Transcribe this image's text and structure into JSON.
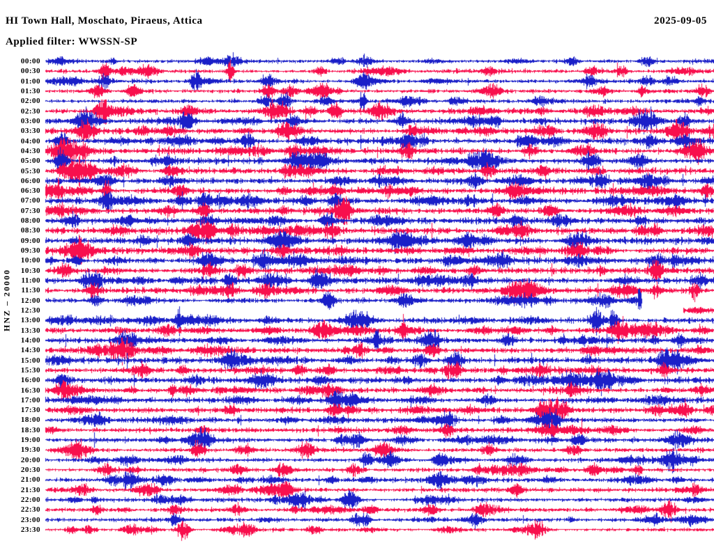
{
  "page": {
    "background": "#ffffff",
    "text_color": "#000000"
  },
  "header": {
    "station_title": "HI Town Hall, Moschato, Piraeus, Attica",
    "date": "2025-09-05",
    "filter_label": "Applied filter: WWSSN-SP"
  },
  "y_axis": {
    "scale_label": "HNZ – 20000"
  },
  "chart_data": {
    "type": "line",
    "subtype": "helicorder-day-plot",
    "title": "HI Town Hall, Moschato, Piraeus, Attica",
    "date": "2025-09-05",
    "filter": "WWSSN-SP",
    "channel_scale": "HNZ – 20000",
    "rows_per_day": 48,
    "minutes_per_row": 30,
    "grid": false,
    "legend": "none",
    "colors": {
      "blue": "#1a1fc8",
      "red": "#f80f4d"
    },
    "rows": [
      {
        "label": "00:00",
        "color": "blue",
        "activity": 0.5,
        "bursts": [
          {
            "t": 0.28,
            "a": 9
          },
          {
            "t": 0.48,
            "a": 8
          },
          {
            "t": 0.9,
            "a": 7
          }
        ]
      },
      {
        "label": "00:30",
        "color": "red",
        "activity": 0.5,
        "bursts": [
          {
            "t": 0.089,
            "a": 6
          },
          {
            "t": 0.277,
            "a": 16,
            "w": 0.004
          },
          {
            "t": 0.663,
            "a": 7
          }
        ]
      },
      {
        "label": "01:00",
        "color": "blue",
        "activity": 0.5,
        "bursts": [
          {
            "t": 0.089,
            "a": 8
          },
          {
            "t": 0.334,
            "a": 10
          },
          {
            "t": 0.475,
            "a": 9
          }
        ]
      },
      {
        "label": "01:30",
        "color": "red",
        "activity": 0.55,
        "bursts": [
          {
            "t": 0.078,
            "a": 10
          },
          {
            "t": 0.131,
            "a": 8
          },
          {
            "t": 0.334,
            "a": 9
          },
          {
            "t": 0.366,
            "a": 10
          },
          {
            "t": 0.984,
            "a": 8
          }
        ]
      },
      {
        "label": "02:00",
        "color": "blue",
        "activity": 0.5,
        "bursts": [
          {
            "t": 0.329,
            "a": 9
          },
          {
            "t": 0.358,
            "a": 11
          },
          {
            "t": 0.475,
            "a": 16,
            "w": 0.003
          }
        ]
      },
      {
        "label": "02:30",
        "color": "red",
        "activity": 0.7,
        "bursts": [
          {
            "t": 0.087,
            "a": 12
          },
          {
            "t": 0.214,
            "a": 9
          },
          {
            "t": 0.345,
            "a": 13,
            "w": 0.012
          },
          {
            "t": 0.434,
            "a": 10
          },
          {
            "t": 0.826,
            "a": 8
          }
        ]
      },
      {
        "label": "03:00",
        "color": "blue",
        "activity": 0.75,
        "bursts": [
          {
            "t": 0.063,
            "a": 12,
            "w": 0.012
          },
          {
            "t": 0.212,
            "a": 12
          },
          {
            "t": 0.371,
            "a": 9
          },
          {
            "t": 0.533,
            "a": 8
          },
          {
            "t": 0.956,
            "a": 9
          }
        ]
      },
      {
        "label": "03:30",
        "color": "red",
        "activity": 0.8,
        "bursts": [
          {
            "t": 0.066,
            "a": 12
          },
          {
            "t": 0.363,
            "a": 13,
            "w": 0.01
          },
          {
            "t": 0.549,
            "a": 8
          },
          {
            "t": 0.828,
            "a": 9
          },
          {
            "t": 0.951,
            "a": 10
          }
        ]
      },
      {
        "label": "04:00",
        "color": "blue",
        "activity": 0.85,
        "bursts": [
          {
            "t": 0.024,
            "a": 10
          },
          {
            "t": 0.303,
            "a": 9
          },
          {
            "t": 0.543,
            "a": 12
          },
          {
            "t": 0.726,
            "a": 8
          },
          {
            "t": 0.904,
            "a": 9
          },
          {
            "t": 0.954,
            "a": 9
          }
        ]
      },
      {
        "label": "04:30",
        "color": "red",
        "activity": 0.9,
        "bursts": [
          {
            "t": 0.031,
            "a": 14,
            "w": 0.012
          },
          {
            "t": 0.371,
            "a": 9
          },
          {
            "t": 0.543,
            "a": 10
          },
          {
            "t": 0.726,
            "a": 8
          }
        ]
      },
      {
        "label": "05:00",
        "color": "blue",
        "activity": 0.9,
        "bursts": [
          {
            "t": 0.024,
            "a": 15,
            "w": 0.006
          },
          {
            "t": 0.183,
            "a": 8
          },
          {
            "t": 0.413,
            "a": 8
          },
          {
            "t": 0.663,
            "a": 8
          },
          {
            "t": 0.888,
            "a": 10
          }
        ]
      },
      {
        "label": "05:30",
        "color": "red",
        "activity": 0.9,
        "bursts": [
          {
            "t": 0.057,
            "a": 13,
            "w": 0.014
          },
          {
            "t": 0.188,
            "a": 8
          },
          {
            "t": 0.663,
            "a": 9
          },
          {
            "t": 0.745,
            "a": 8
          }
        ]
      },
      {
        "label": "06:00",
        "color": "blue",
        "activity": 0.85,
        "bursts": [
          {
            "t": 0.091,
            "a": 12
          },
          {
            "t": 0.643,
            "a": 9
          },
          {
            "t": 0.831,
            "a": 9
          },
          {
            "t": 0.904,
            "a": 8
          }
        ]
      },
      {
        "label": "06:30",
        "color": "red",
        "activity": 0.9,
        "bursts": [
          {
            "t": 0.018,
            "a": 10
          },
          {
            "t": 0.091,
            "a": 18,
            "w": 0.004
          },
          {
            "t": 0.434,
            "a": 8
          },
          {
            "t": 0.988,
            "a": 9
          }
        ]
      },
      {
        "label": "07:00",
        "color": "blue",
        "activity": 0.9,
        "bursts": [
          {
            "t": 0.091,
            "a": 12
          },
          {
            "t": 0.206,
            "a": 9
          },
          {
            "t": 0.237,
            "a": 9
          },
          {
            "t": 0.434,
            "a": 8
          }
        ]
      },
      {
        "label": "07:30",
        "color": "red",
        "activity": 0.9,
        "bursts": [
          {
            "t": 0.024,
            "a": 8
          },
          {
            "t": 0.237,
            "a": 9
          },
          {
            "t": 0.444,
            "a": 12
          },
          {
            "t": 0.676,
            "a": 8
          },
          {
            "t": 0.756,
            "a": 8
          }
        ]
      },
      {
        "label": "08:00",
        "color": "blue",
        "activity": 0.95,
        "bursts": [
          {
            "t": 0.125,
            "a": 9
          },
          {
            "t": 0.423,
            "a": 12
          },
          {
            "t": 0.705,
            "a": 9
          }
        ]
      },
      {
        "label": "08:30",
        "color": "red",
        "activity": 0.95,
        "bursts": [
          {
            "t": 0.244,
            "a": 12
          },
          {
            "t": 0.28,
            "a": 9
          },
          {
            "t": 0.428,
            "a": 9
          },
          {
            "t": 0.708,
            "a": 8
          },
          {
            "t": 0.893,
            "a": 8
          }
        ]
      },
      {
        "label": "09:00",
        "color": "blue",
        "activity": 0.95,
        "bursts": [
          {
            "t": 0.214,
            "a": 9
          },
          {
            "t": 0.355,
            "a": 13,
            "w": 0.01
          },
          {
            "t": 0.533,
            "a": 9
          },
          {
            "t": 0.799,
            "a": 11,
            "w": 0.012
          }
        ]
      },
      {
        "label": "09:30",
        "color": "red",
        "activity": 0.95,
        "bursts": [
          {
            "t": 0.047,
            "a": 11,
            "w": 0.014
          },
          {
            "t": 0.355,
            "a": 9
          },
          {
            "t": 0.799,
            "a": 9
          }
        ]
      },
      {
        "label": "10:00",
        "color": "blue",
        "activity": 0.95,
        "bursts": [
          {
            "t": 0.246,
            "a": 12,
            "w": 0.01
          },
          {
            "t": 0.326,
            "a": 9
          },
          {
            "t": 0.684,
            "a": 9
          },
          {
            "t": 0.914,
            "a": 8
          }
        ]
      },
      {
        "label": "10:30",
        "color": "red",
        "activity": 0.9,
        "bursts": [
          {
            "t": 0.028,
            "a": 9
          },
          {
            "t": 0.246,
            "a": 9
          },
          {
            "t": 0.643,
            "a": 8
          },
          {
            "t": 0.914,
            "a": 9
          }
        ]
      },
      {
        "label": "11:00",
        "color": "blue",
        "activity": 0.9,
        "bursts": [
          {
            "t": 0.07,
            "a": 13,
            "w": 0.012
          },
          {
            "t": 0.277,
            "a": 9
          },
          {
            "t": 0.408,
            "a": 9
          },
          {
            "t": 0.632,
            "a": 9
          }
        ]
      },
      {
        "label": "11:30",
        "color": "red",
        "activity": 0.9,
        "bursts": [
          {
            "t": 0.07,
            "a": 9
          },
          {
            "t": 0.277,
            "a": 8
          },
          {
            "t": 0.71,
            "a": 12,
            "w": 0.016
          },
          {
            "t": 0.914,
            "a": 8
          },
          {
            "t": 0.972,
            "a": 13,
            "w": 0.004
          }
        ]
      },
      {
        "label": "12:00",
        "color": "blue",
        "activity": 0.7,
        "segments": [
          [
            0,
            0.893
          ]
        ],
        "bursts": [
          {
            "t": 0.423,
            "a": 12
          },
          {
            "t": 0.538,
            "a": 9
          },
          {
            "t": 0.833,
            "a": 10,
            "w": 0.012
          },
          {
            "t": 0.889,
            "a": 16,
            "w": 0.002
          }
        ]
      },
      {
        "label": "12:30",
        "color": "red",
        "activity": 0.55,
        "segments": [
          [
            0.955,
            1
          ]
        ],
        "bursts": []
      },
      {
        "label": "13:00",
        "color": "blue",
        "activity": 0.85,
        "bursts": [
          {
            "t": 0.199,
            "a": 15,
            "w": 0.0025
          },
          {
            "t": 0.826,
            "a": 18,
            "w": 0.006
          },
          {
            "t": 0.85,
            "a": 14,
            "w": 0.004
          }
        ]
      },
      {
        "label": "13:30",
        "color": "red",
        "activity": 0.85,
        "bursts": [
          {
            "t": 0.183,
            "a": 8
          },
          {
            "t": 0.416,
            "a": 12,
            "w": 0.012
          },
          {
            "t": 0.536,
            "a": 16,
            "w": 0.002
          },
          {
            "t": 0.862,
            "a": 9
          }
        ]
      },
      {
        "label": "14:00",
        "color": "blue",
        "activity": 0.85,
        "bursts": [
          {
            "t": 0.122,
            "a": 12,
            "w": 0.01
          },
          {
            "t": 0.496,
            "a": 16,
            "w": 0.003
          },
          {
            "t": 0.58,
            "a": 9
          },
          {
            "t": 0.693,
            "a": 8
          }
        ]
      },
      {
        "label": "14:30",
        "color": "red",
        "activity": 0.85,
        "bursts": [
          {
            "t": 0.12,
            "a": 13,
            "w": 0.01
          },
          {
            "t": 0.47,
            "a": 9
          },
          {
            "t": 0.58,
            "a": 9
          }
        ]
      },
      {
        "label": "15:00",
        "color": "blue",
        "activity": 0.85,
        "bursts": [
          {
            "t": 0.279,
            "a": 12,
            "w": 0.01
          },
          {
            "t": 0.559,
            "a": 9
          },
          {
            "t": 0.613,
            "a": 10
          },
          {
            "t": 0.925,
            "a": 8
          }
        ]
      },
      {
        "label": "15:30",
        "color": "red",
        "activity": 0.85,
        "bursts": [
          {
            "t": 0.146,
            "a": 9
          },
          {
            "t": 0.423,
            "a": 8
          },
          {
            "t": 0.613,
            "a": 8
          },
          {
            "t": 0.925,
            "a": 8
          }
        ]
      },
      {
        "label": "16:00",
        "color": "blue",
        "activity": 0.9,
        "bursts": [
          {
            "t": 0.026,
            "a": 11
          },
          {
            "t": 0.789,
            "a": 9
          },
          {
            "t": 0.833,
            "a": 12,
            "w": 0.01
          }
        ]
      },
      {
        "label": "16:30",
        "color": "red",
        "activity": 0.85,
        "bursts": [
          {
            "t": 0.026,
            "a": 8
          },
          {
            "t": 0.19,
            "a": 10,
            "w": 0.003
          },
          {
            "t": 0.423,
            "a": 8
          },
          {
            "t": 0.789,
            "a": 8
          }
        ]
      },
      {
        "label": "17:00",
        "color": "blue",
        "activity": 0.8,
        "bursts": [
          {
            "t": 0.434,
            "a": 9
          },
          {
            "t": 0.663,
            "a": 8
          }
        ]
      },
      {
        "label": "17:30",
        "color": "red",
        "activity": 0.8,
        "bursts": [
          {
            "t": 0.277,
            "a": 8
          },
          {
            "t": 0.434,
            "a": 8
          },
          {
            "t": 0.77,
            "a": 10,
            "w": 0.01
          },
          {
            "t": 0.956,
            "a": 10
          }
        ]
      },
      {
        "label": "18:00",
        "color": "blue",
        "activity": 0.7,
        "bursts": [
          {
            "t": 0.078,
            "a": 8
          },
          {
            "t": 0.601,
            "a": 8
          },
          {
            "t": 0.758,
            "a": 9
          }
        ]
      },
      {
        "label": "18:30",
        "color": "red",
        "activity": 0.65,
        "bursts": [
          {
            "t": 0.601,
            "a": 8
          },
          {
            "t": 0.758,
            "a": 8
          }
        ]
      },
      {
        "label": "19:00",
        "color": "blue",
        "activity": 0.7,
        "bursts": [
          {
            "t": 0.23,
            "a": 13,
            "w": 0.012
          },
          {
            "t": 0.444,
            "a": 8
          },
          {
            "t": 0.799,
            "a": 8
          }
        ]
      },
      {
        "label": "19:30",
        "color": "red",
        "activity": 0.6,
        "bursts": [
          {
            "t": 0.23,
            "a": 8
          },
          {
            "t": 0.392,
            "a": 8
          },
          {
            "t": 0.663,
            "a": 8
          },
          {
            "t": 0.789,
            "a": 8
          }
        ]
      },
      {
        "label": "20:00",
        "color": "blue",
        "activity": 0.6,
        "bursts": [
          {
            "t": 0.481,
            "a": 13,
            "w": 0.005
          },
          {
            "t": 0.59,
            "a": 9
          },
          {
            "t": 0.94,
            "a": 10
          }
        ]
      },
      {
        "label": "20:30",
        "color": "red",
        "activity": 0.55,
        "bursts": [
          {
            "t": 0.089,
            "a": 8
          },
          {
            "t": 0.287,
            "a": 8
          },
          {
            "t": 0.82,
            "a": 8
          }
        ]
      },
      {
        "label": "21:00",
        "color": "blue",
        "activity": 0.6,
        "bursts": [
          {
            "t": 0.099,
            "a": 9
          },
          {
            "t": 0.125,
            "a": 9
          },
          {
            "t": 0.59,
            "a": 12,
            "w": 0.01
          }
        ]
      },
      {
        "label": "21:30",
        "color": "red",
        "activity": 0.55,
        "bursts": [
          {
            "t": 0.361,
            "a": 8
          },
          {
            "t": 0.705,
            "a": 8
          },
          {
            "t": 0.972,
            "a": 8
          }
        ]
      },
      {
        "label": "22:00",
        "color": "blue",
        "activity": 0.5,
        "bursts": [
          {
            "t": 0.381,
            "a": 11,
            "w": 0.012
          },
          {
            "t": 0.455,
            "a": 8
          }
        ]
      },
      {
        "label": "22:30",
        "color": "red",
        "activity": 0.55,
        "bursts": [
          {
            "t": 0.193,
            "a": 8
          },
          {
            "t": 0.287,
            "a": 10
          },
          {
            "t": 0.486,
            "a": 8
          },
          {
            "t": 0.935,
            "a": 9
          }
        ]
      },
      {
        "label": "23:00",
        "color": "blue",
        "activity": 0.45,
        "bursts": [
          {
            "t": 0.193,
            "a": 7
          },
          {
            "t": 0.465,
            "a": 7
          },
          {
            "t": 0.643,
            "a": 10,
            "w": 0.008
          }
        ]
      },
      {
        "label": "23:30",
        "color": "red",
        "activity": 0.4,
        "bursts": [
          {
            "t": 0.206,
            "a": 16,
            "w": 0.006
          },
          {
            "t": 0.303,
            "a": 8
          },
          {
            "t": 0.402,
            "a": 7
          },
          {
            "t": 0.737,
            "a": 12,
            "w": 0.008
          }
        ]
      }
    ]
  }
}
